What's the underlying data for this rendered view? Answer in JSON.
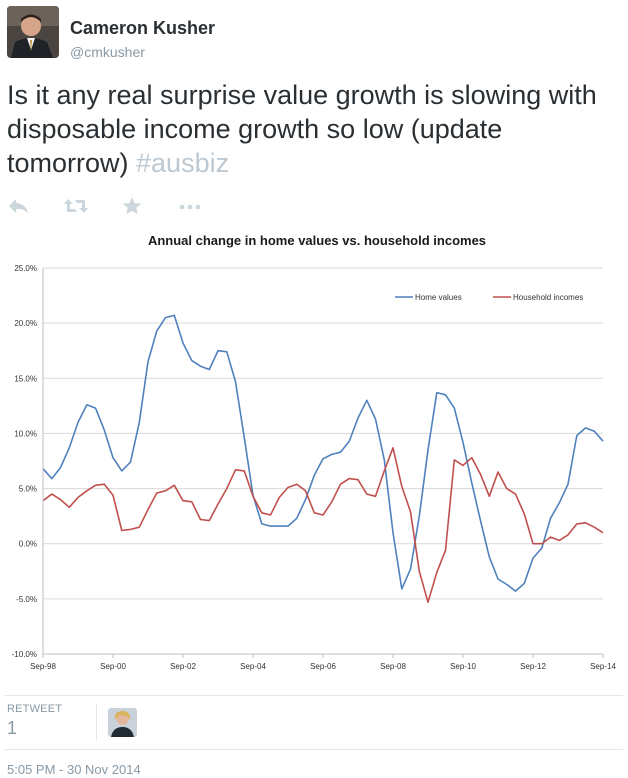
{
  "user": {
    "name": "Cameron Kusher",
    "handle": "@cmkusher"
  },
  "tweet": {
    "text": "Is it any real surprise value growth is slowing with disposable income growth so low (update tomorrow) ",
    "hashtag": "#ausbiz"
  },
  "actions": [
    {
      "icon": "reply-icon"
    },
    {
      "icon": "retweet-icon"
    },
    {
      "icon": "favorite-star-icon"
    },
    {
      "icon": "more-dots-icon"
    }
  ],
  "retweets": {
    "label": "RETWEET",
    "count": "1"
  },
  "timestamp": "5:05 PM - 30 Nov 2014",
  "colors": {
    "home_values": "#4f81bd",
    "household_incomes": "#c0504d",
    "hashtag": "#bcc9d3",
    "meta": "#8899a6"
  },
  "chart_data": {
    "type": "line",
    "title": "Annual change in home values vs. household incomes",
    "xlabel": "",
    "ylabel": "",
    "ylim": [
      -10,
      25
    ],
    "yticks": [
      "25.0%",
      "20.0%",
      "15.0%",
      "10.0%",
      "5.0%",
      "0.0%",
      "-5.0%",
      "-10.0%"
    ],
    "xticks": [
      "Sep-98",
      "Sep-00",
      "Sep-02",
      "Sep-04",
      "Sep-06",
      "Sep-08",
      "Sep-10",
      "Sep-12",
      "Sep-14"
    ],
    "grid": true,
    "legend": "top-right",
    "series": [
      {
        "name": "Home values",
        "color": "#4f81bd",
        "values": [
          6.8,
          5.9,
          6.9,
          8.7,
          11.0,
          12.6,
          12.3,
          10.3,
          7.8,
          6.6,
          7.4,
          11.0,
          16.5,
          19.3,
          20.5,
          20.7,
          18.2,
          16.6,
          16.1,
          15.8,
          17.5,
          17.4,
          14.7,
          9.6,
          4.4,
          1.8,
          1.6,
          1.6,
          1.6,
          2.3,
          4.0,
          6.2,
          7.7,
          8.1,
          8.3,
          9.3,
          11.4,
          13.0,
          11.3,
          7.6,
          1.0,
          -4.1,
          -2.3,
          2.5,
          8.5,
          13.7,
          13.5,
          12.3,
          9.2,
          5.5,
          2.1,
          -1.2,
          -3.2,
          -3.7,
          -4.3,
          -3.6,
          -1.3,
          -0.4,
          2.3,
          3.7,
          5.4,
          9.8,
          10.5,
          10.2,
          9.3
        ]
      },
      {
        "name": "Household incomes",
        "color": "#c0504d",
        "values": [
          3.9,
          4.5,
          4.0,
          3.3,
          4.2,
          4.8,
          5.3,
          5.4,
          4.4,
          1.2,
          1.3,
          1.5,
          3.1,
          4.6,
          4.8,
          5.3,
          3.9,
          3.8,
          2.2,
          2.1,
          3.6,
          5.0,
          6.7,
          6.6,
          4.3,
          2.8,
          2.6,
          4.2,
          5.1,
          5.4,
          4.8,
          2.8,
          2.6,
          3.8,
          5.4,
          5.9,
          5.8,
          4.5,
          4.3,
          6.6,
          8.7,
          5.2,
          2.9,
          -2.5,
          -5.3,
          -2.6,
          -0.6,
          7.6,
          7.1,
          7.8,
          6.3,
          4.3,
          6.5,
          5.0,
          4.5,
          2.7,
          0.0,
          0.0,
          0.6,
          0.3,
          0.8,
          1.8,
          1.9,
          1.5,
          1.0
        ]
      }
    ]
  }
}
